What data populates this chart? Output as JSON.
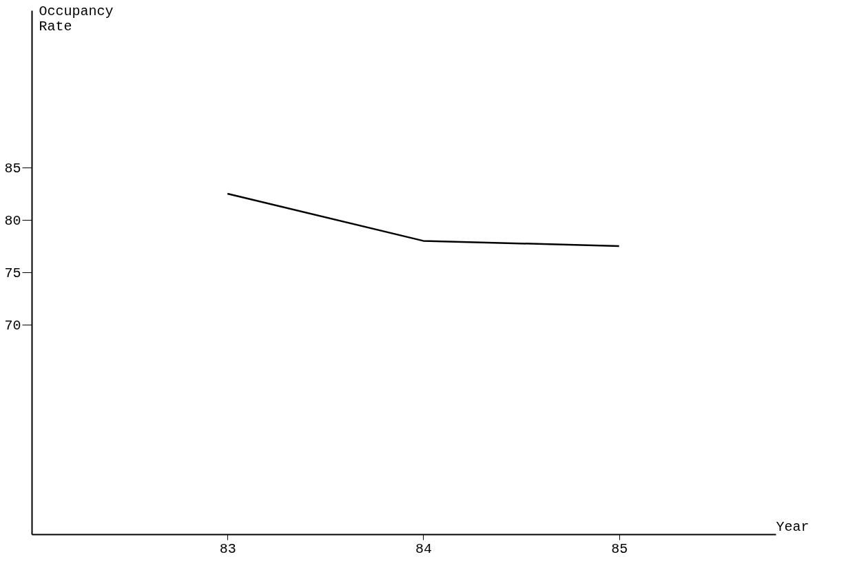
{
  "chart_data": {
    "type": "line",
    "xlabel": "Year",
    "ylabel": "Occupancy\nRate",
    "categories": [
      "83",
      "84",
      "85"
    ],
    "series": [
      {
        "color": "#000000",
        "values": [
          82.5,
          78,
          77.5
        ]
      }
    ],
    "ylim": [
      50,
      100
    ],
    "yticks": [
      70,
      75,
      80,
      85
    ],
    "grid": false,
    "legend": false,
    "marker": "none",
    "line_style": "solid"
  }
}
